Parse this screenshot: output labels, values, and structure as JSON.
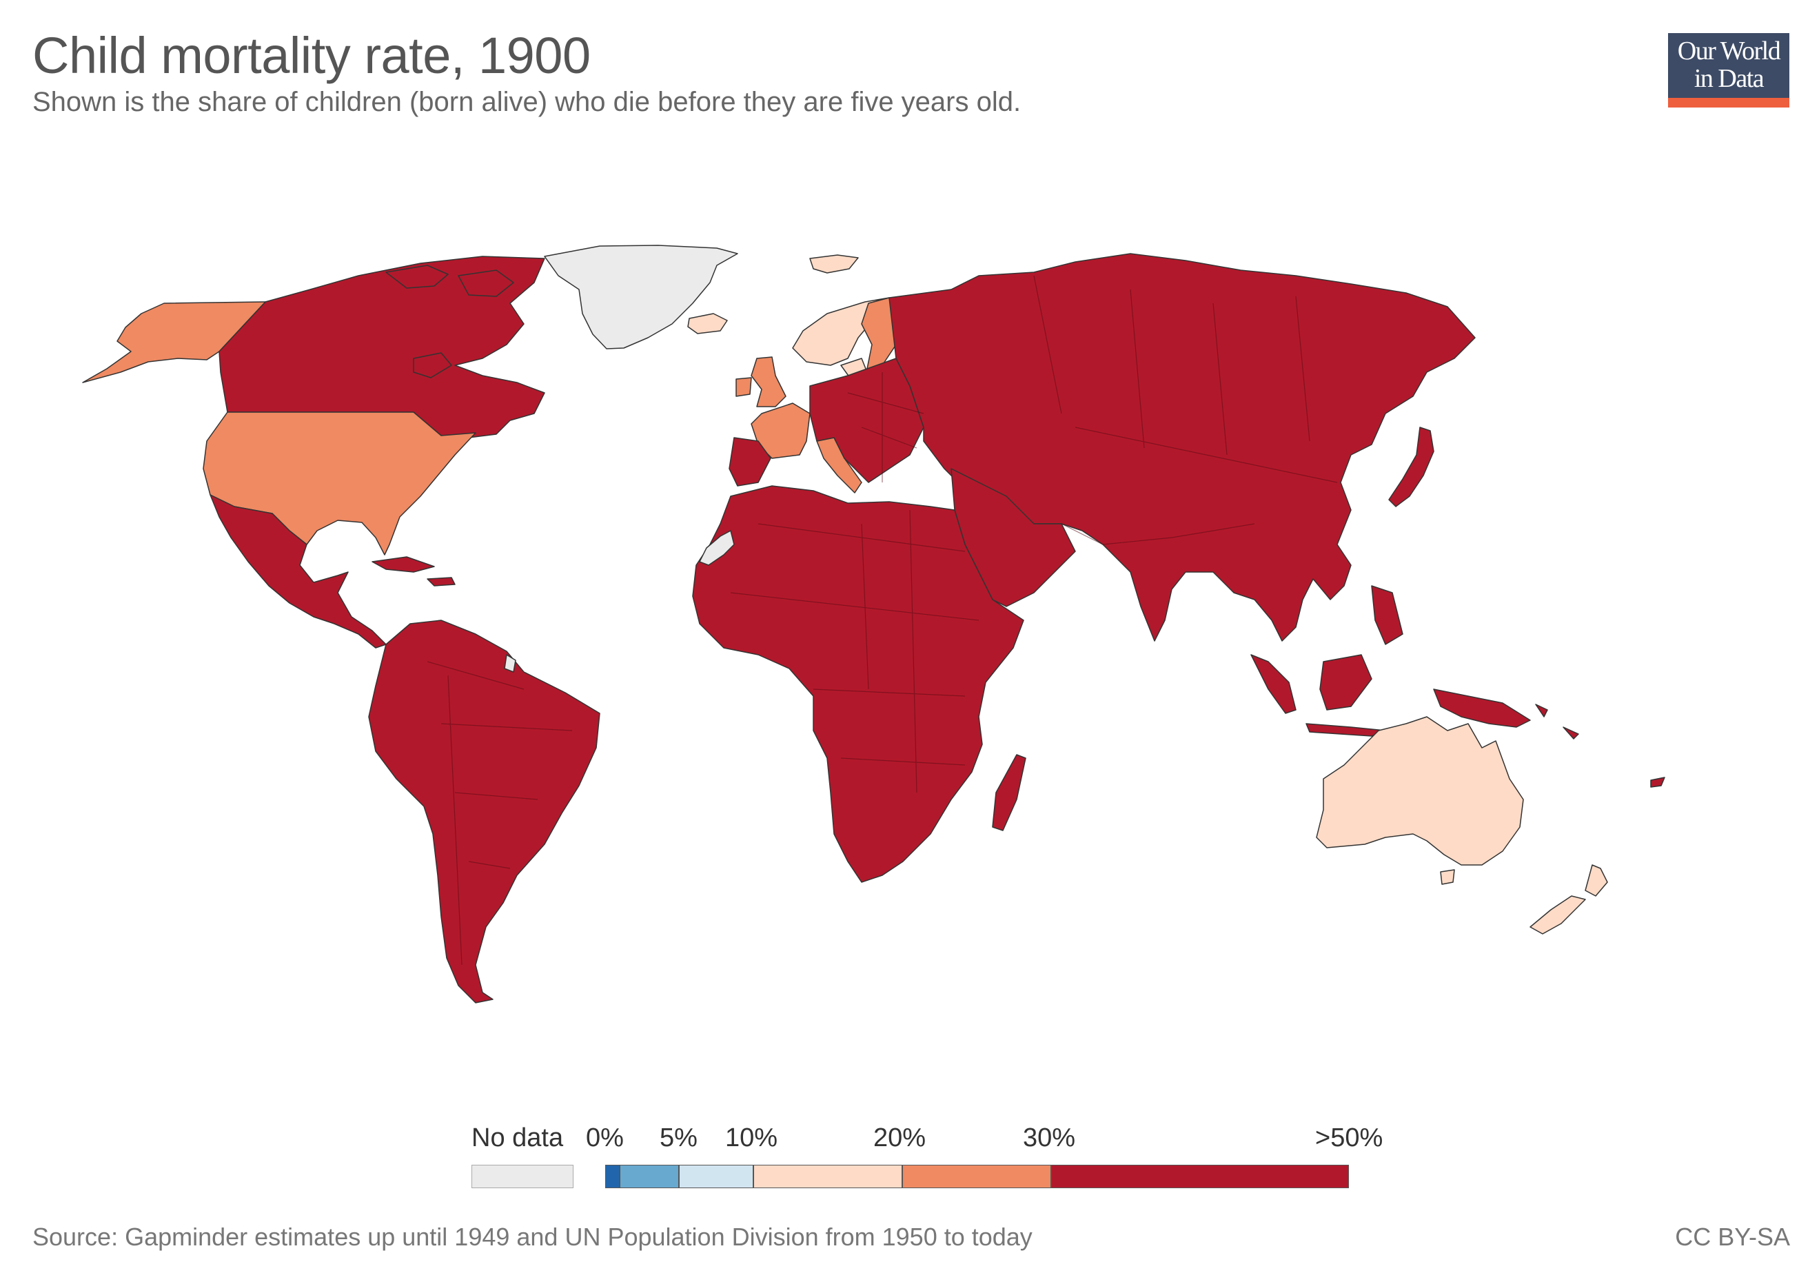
{
  "header": {
    "title": "Child mortality rate, 1900",
    "subtitle": "Shown is the share of children (born alive) who die before they are five years old."
  },
  "logo": {
    "line1": "Our World",
    "line2": "in Data"
  },
  "colors": {
    "no_data": "#ebebeb",
    "bin_0_1": "#2166ac",
    "bin_1_5": "#67a9cf",
    "bin_5_10": "#d1e5f0",
    "bin_10_20": "#fddbc7",
    "bin_20_30": "#ef8a62",
    "bin_30_50": "#b2182b",
    "border": "#333333",
    "logo_bg": "#3d4b66",
    "logo_accent": "#ee5f3e"
  },
  "legend": {
    "no_data_label": "No data",
    "bins": [
      {
        "from": 0,
        "to": 1,
        "color": "#2166ac"
      },
      {
        "from": 1,
        "to": 5,
        "color": "#67a9cf"
      },
      {
        "from": 5,
        "to": 10,
        "color": "#d1e5f0"
      },
      {
        "from": 10,
        "to": 20,
        "color": "#fddbc7"
      },
      {
        "from": 20,
        "to": 30,
        "color": "#ef8a62"
      },
      {
        "from": 30,
        "to": 50,
        "color": "#b2182b"
      }
    ],
    "tick_labels": [
      "0%",
      "5%",
      "10%",
      "20%",
      "30%",
      ">50%"
    ]
  },
  "regions": [
    {
      "name": "Greenland",
      "category": "No data"
    },
    {
      "name": "Western Sahara",
      "category": "No data"
    },
    {
      "name": "French Guiana",
      "category": "No data"
    },
    {
      "name": "Alaska",
      "category": "20-30%"
    },
    {
      "name": "United States",
      "category": "20-30%"
    },
    {
      "name": "United Kingdom",
      "category": "20-30%"
    },
    {
      "name": "France",
      "category": "20-30%"
    },
    {
      "name": "Italy",
      "category": "20-30%"
    },
    {
      "name": "Finland",
      "category": "20-30%"
    },
    {
      "name": "Norway",
      "category": "10-20%"
    },
    {
      "name": "Sweden",
      "category": "10-20%"
    },
    {
      "name": "Iceland",
      "category": "10-20%"
    },
    {
      "name": "Svalbard",
      "category": "10-20%"
    },
    {
      "name": "Australia",
      "category": "10-20%"
    },
    {
      "name": "New Zealand",
      "category": "10-20%"
    },
    {
      "name": "Canada",
      "category": ">30%"
    },
    {
      "name": "Latin America",
      "category": ">30%"
    },
    {
      "name": "Africa",
      "category": ">30%"
    },
    {
      "name": "Russia and Asia",
      "category": ">30%"
    },
    {
      "name": "Rest of Europe",
      "category": ">30%"
    },
    {
      "name": "Middle East",
      "category": ">30%"
    },
    {
      "name": "Southeast Asia",
      "category": ">30%"
    },
    {
      "name": "Japan",
      "category": ">30%"
    },
    {
      "name": "Madagascar",
      "category": ">30%"
    },
    {
      "name": "New Guinea",
      "category": ">30%"
    }
  ],
  "footer": {
    "source": "Source: Gapminder estimates up until 1949 and UN Population Division from 1950 to today",
    "license": "CC BY-SA"
  }
}
